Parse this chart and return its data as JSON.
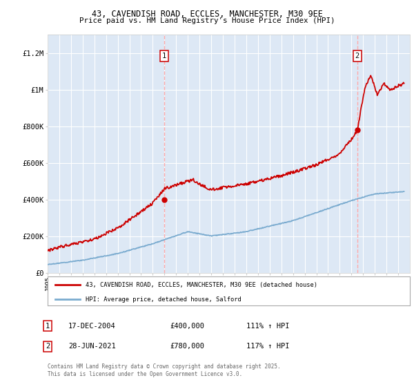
{
  "title_line1": "43, CAVENDISH ROAD, ECCLES, MANCHESTER, M30 9EE",
  "title_line2": "Price paid vs. HM Land Registry's House Price Index (HPI)",
  "legend_label_red": "43, CAVENDISH ROAD, ECCLES, MANCHESTER, M30 9EE (detached house)",
  "legend_label_blue": "HPI: Average price, detached house, Salford",
  "annotation1_label": "1",
  "annotation1_date": "17-DEC-2004",
  "annotation1_price": "£400,000",
  "annotation1_hpi": "111% ↑ HPI",
  "annotation2_label": "2",
  "annotation2_date": "28-JUN-2021",
  "annotation2_price": "£780,000",
  "annotation2_hpi": "117% ↑ HPI",
  "copyright_text": "Contains HM Land Registry data © Crown copyright and database right 2025.\nThis data is licensed under the Open Government Licence v3.0.",
  "red_color": "#cc0000",
  "blue_color": "#7aabcf",
  "vline_color": "#ffaaaa",
  "background_color": "#ffffff",
  "plot_bg_color": "#dde8f5",
  "grid_color": "#ffffff",
  "ylim": [
    0,
    1300000
  ],
  "yticks": [
    0,
    200000,
    400000,
    600000,
    800000,
    1000000,
    1200000
  ],
  "ytick_labels": [
    "£0",
    "£200K",
    "£400K",
    "£600K",
    "£800K",
    "£1M",
    "£1.2M"
  ],
  "year_start": 1995,
  "year_end": 2026,
  "sale1_year": 2004.96,
  "sale1_value": 400000,
  "sale2_year": 2021.49,
  "sale2_value": 780000
}
